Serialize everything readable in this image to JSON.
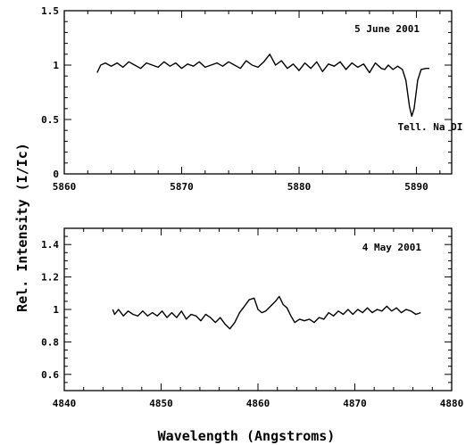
{
  "chart_data": [
    {
      "type": "line",
      "annotation_date": "5 June 2001",
      "annotation_feature": "Tell. Na DI",
      "xlim": [
        5860,
        5893
      ],
      "ylim": [
        0,
        1.5
      ],
      "xticks": [
        5860,
        5870,
        5880,
        5890
      ],
      "xtick_labels": [
        "5860",
        "5870",
        "5880",
        "5890"
      ],
      "yticks": [
        0,
        0.5,
        1,
        1.5
      ],
      "ytick_labels": [
        "0",
        "0.5",
        "1",
        "1.5"
      ],
      "series": [
        {
          "x": [
            5862.8,
            5863.1,
            5863.5,
            5864.0,
            5864.5,
            5865.0,
            5865.5,
            5866.0,
            5866.5,
            5867.0,
            5867.5,
            5868.0,
            5868.5,
            5869.0,
            5869.5,
            5870.0,
            5870.5,
            5871.0,
            5871.5,
            5872.0,
            5872.5,
            5873.0,
            5873.5,
            5874.0,
            5874.5,
            5875.0,
            5875.5,
            5876.0,
            5876.5,
            5877.0,
            5877.5,
            5878.0,
            5878.5,
            5879.0,
            5879.5,
            5880.0,
            5880.5,
            5881.0,
            5881.5,
            5882.0,
            5882.5,
            5883.0,
            5883.5,
            5884.0,
            5884.5,
            5885.0,
            5885.5,
            5886.0,
            5886.5,
            5887.0,
            5887.3,
            5887.6,
            5888.0,
            5888.4,
            5888.8,
            5889.1,
            5889.4,
            5889.6,
            5889.8,
            5890.1,
            5890.4,
            5890.8,
            5891.1
          ],
          "y": [
            0.93,
            1.0,
            1.02,
            0.99,
            1.02,
            0.98,
            1.03,
            1.0,
            0.97,
            1.02,
            1.0,
            0.98,
            1.03,
            0.99,
            1.02,
            0.97,
            1.01,
            0.99,
            1.03,
            0.98,
            1.0,
            1.02,
            0.99,
            1.03,
            1.0,
            0.97,
            1.04,
            1.0,
            0.98,
            1.03,
            1.1,
            1.0,
            1.04,
            0.97,
            1.01,
            0.95,
            1.02,
            0.97,
            1.03,
            0.94,
            1.01,
            0.99,
            1.03,
            0.96,
            1.02,
            0.98,
            1.01,
            0.93,
            1.02,
            0.97,
            0.96,
            1.0,
            0.96,
            0.99,
            0.96,
            0.86,
            0.62,
            0.53,
            0.6,
            0.86,
            0.96,
            0.97,
            0.97
          ]
        }
      ]
    },
    {
      "type": "line",
      "annotation_date": "4 May 2001",
      "xlim": [
        4840,
        4880
      ],
      "ylim": [
        0.5,
        1.5
      ],
      "xticks": [
        4840,
        4850,
        4860,
        4870,
        4880
      ],
      "xtick_labels": [
        "4840",
        "4850",
        "4860",
        "4870",
        "4880"
      ],
      "yticks": [
        0.6,
        0.8,
        1,
        1.2,
        1.4
      ],
      "ytick_labels": [
        "0.6",
        "0.8",
        "1",
        "1.2",
        "1.4"
      ],
      "series": [
        {
          "x": [
            4845.0,
            4845.2,
            4845.6,
            4846.1,
            4846.6,
            4847.1,
            4847.6,
            4848.1,
            4848.6,
            4849.1,
            4849.6,
            4850.1,
            4850.6,
            4851.1,
            4851.6,
            4852.1,
            4852.6,
            4853.1,
            4853.6,
            4854.1,
            4854.6,
            4855.1,
            4855.6,
            4856.1,
            4856.6,
            4857.1,
            4857.6,
            4858.1,
            4858.6,
            4859.1,
            4859.6,
            4860.0,
            4860.4,
            4860.8,
            4861.3,
            4861.8,
            4862.2,
            4862.6,
            4863.0,
            4863.4,
            4863.8,
            4864.3,
            4864.8,
            4865.3,
            4865.8,
            4866.3,
            4866.8,
            4867.3,
            4867.8,
            4868.3,
            4868.8,
            4869.3,
            4869.8,
            4870.3,
            4870.8,
            4871.3,
            4871.8,
            4872.3,
            4872.8,
            4873.3,
            4873.8,
            4874.3,
            4874.8,
            4875.3,
            4875.8,
            4876.3,
            4876.8
          ],
          "y": [
            1.0,
            0.97,
            1.0,
            0.96,
            0.99,
            0.97,
            0.96,
            0.99,
            0.96,
            0.98,
            0.96,
            0.99,
            0.95,
            0.98,
            0.95,
            0.99,
            0.94,
            0.97,
            0.96,
            0.93,
            0.97,
            0.95,
            0.92,
            0.95,
            0.91,
            0.88,
            0.92,
            0.98,
            1.02,
            1.06,
            1.07,
            1.0,
            0.98,
            0.99,
            1.02,
            1.05,
            1.08,
            1.03,
            1.01,
            0.96,
            0.92,
            0.94,
            0.93,
            0.94,
            0.92,
            0.95,
            0.94,
            0.98,
            0.96,
            0.99,
            0.97,
            1.0,
            0.97,
            1.0,
            0.98,
            1.01,
            0.98,
            1.0,
            0.99,
            1.02,
            0.99,
            1.01,
            0.98,
            1.0,
            0.99,
            0.97,
            0.98
          ]
        }
      ]
    }
  ],
  "axes": {
    "xlabel": "Wavelength (Angstroms)",
    "ylabel": "Rel. Intensity (I/Ic)"
  }
}
